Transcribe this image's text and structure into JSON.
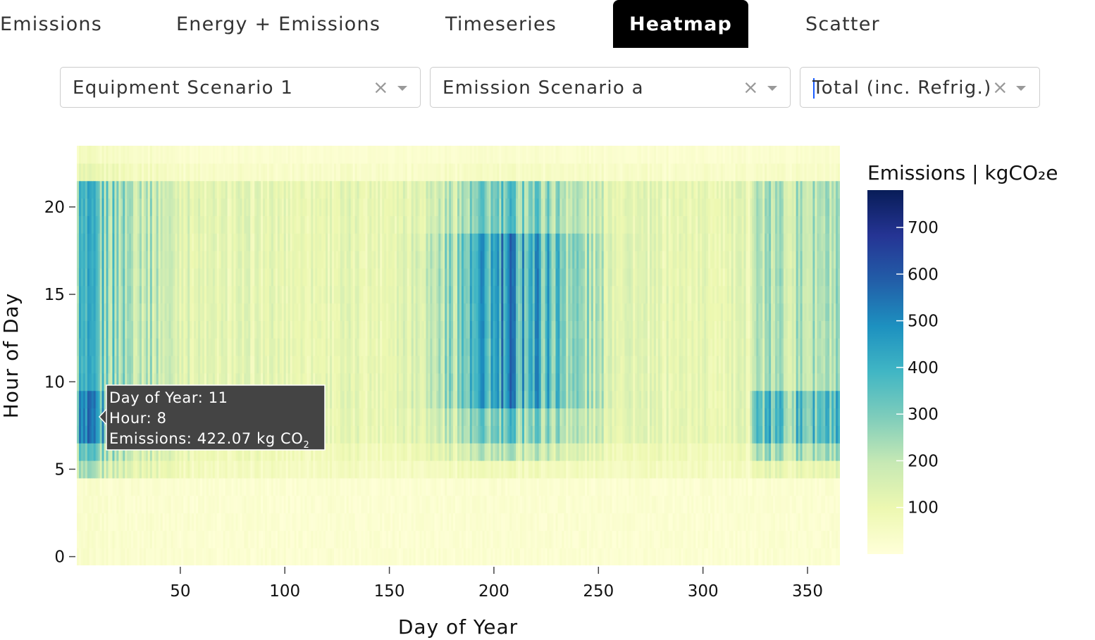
{
  "tabs": [
    {
      "label": "Emissions",
      "active": false
    },
    {
      "label": "Energy + Emissions",
      "active": false
    },
    {
      "label": "Timeseries",
      "active": false
    },
    {
      "label": "Heatmap",
      "active": true
    },
    {
      "label": "Scatter",
      "active": false
    }
  ],
  "filters": {
    "equipment": {
      "value": "Equipment Scenario 1",
      "clear_icon": "close-icon",
      "dropdown_icon": "chevron-down-icon"
    },
    "emission": {
      "value": "Emission Scenario a",
      "clear_icon": "close-icon",
      "dropdown_icon": "chevron-down-icon"
    },
    "category": {
      "value": "Total (inc. Refrig.)",
      "clear_icon": "close-icon",
      "dropdown_icon": "chevron-down-icon"
    }
  },
  "chart_data": {
    "type": "heatmap",
    "xlabel": "Day of Year",
    "ylabel": "Hour of Day",
    "x_range": [
      1,
      365
    ],
    "y_range": [
      0,
      23
    ],
    "x_ticks": [
      50,
      100,
      150,
      200,
      250,
      300,
      350
    ],
    "y_ticks": [
      0,
      5,
      10,
      15,
      20
    ],
    "colorbar": {
      "title": "Emissions | kgCO₂e",
      "range": [
        0,
        780
      ],
      "ticks": [
        100,
        200,
        300,
        400,
        500,
        600,
        700
      ],
      "colorscale": [
        [
          0.0,
          "#ffffd9"
        ],
        [
          0.125,
          "#edf8b1"
        ],
        [
          0.25,
          "#c7e9b4"
        ],
        [
          0.375,
          "#7fcdbb"
        ],
        [
          0.5,
          "#41b6c4"
        ],
        [
          0.625,
          "#1d91c0"
        ],
        [
          0.75,
          "#225ea8"
        ],
        [
          0.875,
          "#253494"
        ],
        [
          1.0,
          "#081d58"
        ]
      ]
    },
    "colorbar_title_parts": {
      "main": "Emissions | kgCO",
      "sub": "₂",
      "tail": "e"
    },
    "tooltip": {
      "lines": [
        "Day of Year: 11",
        "Hour: 8",
        "Emissions: 422.07 kg CO"
      ],
      "unit_subscript": "2",
      "day": 11,
      "hour": 8,
      "value": 422.07
    }
  }
}
